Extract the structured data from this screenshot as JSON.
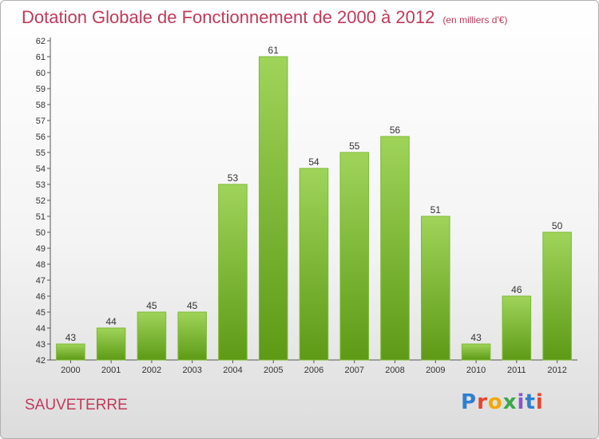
{
  "header": {
    "title": "Dotation Globale de Fonctionnement de 2000 à 2012",
    "unit": "(en milliers d'€)"
  },
  "footer": {
    "commune": "SAUVETERRE",
    "logo": "Proxiti"
  },
  "colors": {
    "bar_top": "#9fd45a",
    "bar_bottom": "#5e9a16",
    "title": "#c03a5a"
  },
  "chart_data": {
    "type": "bar",
    "categories": [
      "2000",
      "2001",
      "2002",
      "2003",
      "2004",
      "2005",
      "2006",
      "2007",
      "2008",
      "2009",
      "2010",
      "2011",
      "2012"
    ],
    "values": [
      43,
      44,
      45,
      45,
      53,
      61,
      54,
      55,
      56,
      51,
      43,
      46,
      50
    ],
    "ylim": [
      42,
      62
    ],
    "yticks": [
      42,
      43,
      44,
      45,
      46,
      47,
      48,
      49,
      50,
      51,
      52,
      53,
      54,
      55,
      56,
      57,
      58,
      59,
      60,
      61,
      62
    ],
    "grid": false,
    "data_labels": true
  }
}
